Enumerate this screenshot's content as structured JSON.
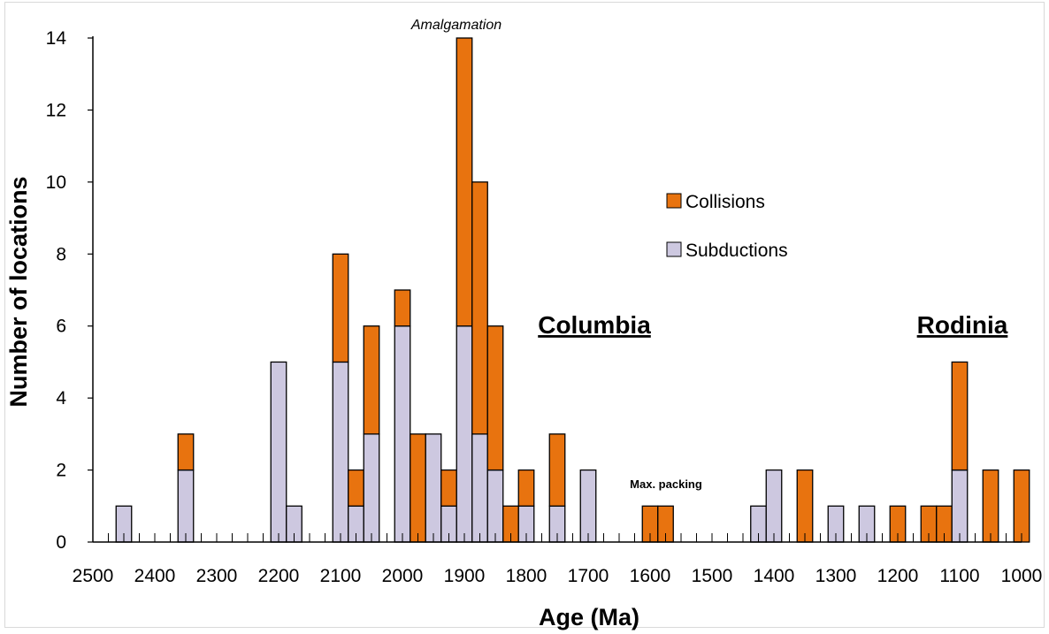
{
  "chart_data": {
    "type": "bar",
    "stacked": true,
    "xlabel": "Age (Ma)",
    "ylabel": "Number of locations",
    "ylim": [
      0,
      14
    ],
    "yticks": [
      0,
      2,
      4,
      6,
      8,
      10,
      12,
      14
    ],
    "xlim": [
      2500,
      1000
    ],
    "x_reversed": true,
    "xticks": [
      2500,
      2400,
      2300,
      2200,
      2100,
      2000,
      1900,
      1800,
      1700,
      1600,
      1500,
      1400,
      1300,
      1200,
      1100,
      1000
    ],
    "bin_width": 25,
    "x": [
      2450,
      2350,
      2200,
      2175,
      2100,
      2075,
      2050,
      2000,
      1975,
      1950,
      1925,
      1900,
      1875,
      1850,
      1825,
      1800,
      1750,
      1700,
      1600,
      1575,
      1425,
      1400,
      1350,
      1300,
      1250,
      1200,
      1150,
      1125,
      1100,
      1050,
      1000
    ],
    "series": [
      {
        "name": "Subductions",
        "color": "#cdc8e0",
        "values": [
          1,
          2,
          5,
          1,
          5,
          1,
          3,
          6,
          0,
          3,
          1,
          6,
          3,
          2,
          0,
          1,
          1,
          2,
          0,
          0,
          1,
          2,
          0,
          1,
          1,
          0,
          0,
          0,
          2,
          0,
          0
        ]
      },
      {
        "name": "Collisions",
        "color": "#e8730f",
        "values": [
          0,
          1,
          0,
          0,
          3,
          1,
          3,
          1,
          3,
          0,
          1,
          8,
          7,
          4,
          1,
          1,
          2,
          0,
          1,
          1,
          0,
          0,
          2,
          0,
          0,
          1,
          1,
          1,
          3,
          2,
          2
        ]
      }
    ],
    "legend": {
      "position": "center-right",
      "entries": [
        "Collisions",
        "Subductions"
      ]
    },
    "annotations": {
      "amalgamation": "Amalgamation",
      "max_packing": "Max. packing",
      "columbia": "Columbia",
      "rodinia": "Rodinia"
    },
    "grid": false
  }
}
